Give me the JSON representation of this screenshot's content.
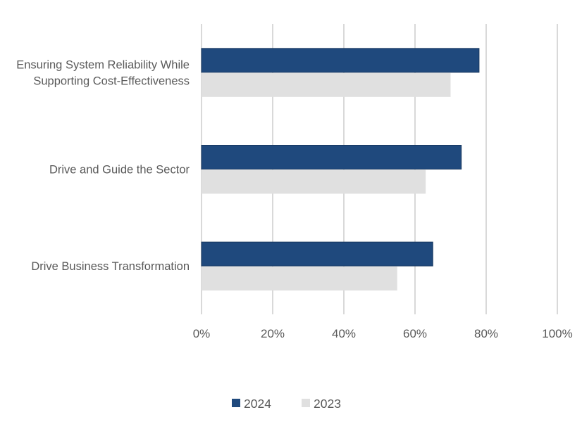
{
  "chart_data": {
    "type": "bar",
    "orientation": "horizontal",
    "title": "",
    "xlabel": "",
    "ylabel": "",
    "categories": [
      [
        "Ensuring System Reliability While",
        "Supporting Cost-Effectiveness"
      ],
      [
        "Drive and Guide the Sector"
      ],
      [
        "Drive Business Transformation"
      ]
    ],
    "series": [
      {
        "name": "2024",
        "color": "#1F497D",
        "values": [
          78,
          73,
          65
        ]
      },
      {
        "name": "2023",
        "color": "#E0E0E0",
        "values": [
          70,
          63,
          55
        ]
      }
    ],
    "xlim": [
      0,
      100
    ],
    "xticks": [
      0,
      20,
      40,
      60,
      80,
      100
    ],
    "xtick_labels": [
      "0%",
      "20%",
      "40%",
      "60%",
      "80%",
      "100%"
    ],
    "grid": "vertical",
    "gridline_color": "#D9D9D9",
    "legend": {
      "position": "bottom",
      "entries": [
        "2024",
        "2023"
      ]
    }
  }
}
